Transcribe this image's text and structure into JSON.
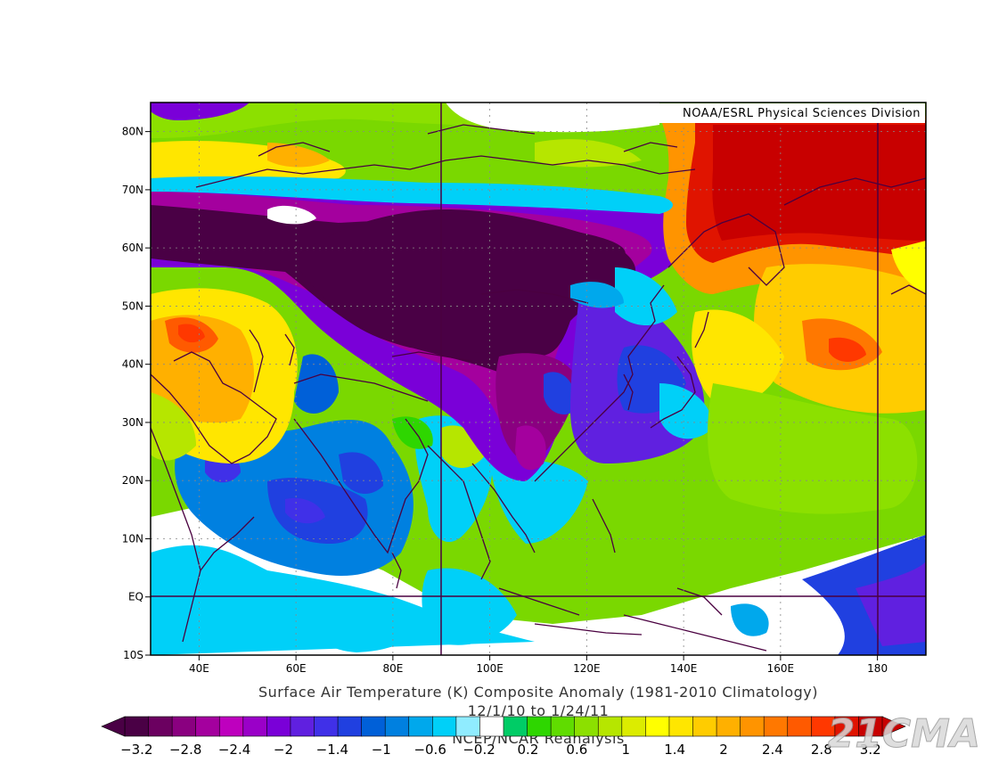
{
  "credit": "NOAA/ESRL Physical Sciences Division",
  "title": "Surface Air Temperature (K) Composite Anomaly (1981-2010 Climatology)",
  "date_range": "12/1/10  to 1/24/11",
  "source": "NCEP/NCAR Reanalysis",
  "watermark": "21CMA",
  "axes": {
    "lat_labels": [
      {
        "value": 80,
        "label": "80N"
      },
      {
        "value": 70,
        "label": "70N"
      },
      {
        "value": 60,
        "label": "60N"
      },
      {
        "value": 50,
        "label": "50N"
      },
      {
        "value": 40,
        "label": "40N"
      },
      {
        "value": 30,
        "label": "30N"
      },
      {
        "value": 20,
        "label": "20N"
      },
      {
        "value": 10,
        "label": "10N"
      },
      {
        "value": 0,
        "label": "EQ"
      },
      {
        "value": -10,
        "label": "10S"
      }
    ],
    "lon_labels": [
      {
        "value": 40,
        "label": "40E"
      },
      {
        "value": 60,
        "label": "60E"
      },
      {
        "value": 80,
        "label": "80E"
      },
      {
        "value": 100,
        "label": "100E"
      },
      {
        "value": 120,
        "label": "120E"
      },
      {
        "value": 140,
        "label": "140E"
      },
      {
        "value": 160,
        "label": "160E"
      },
      {
        "value": 180,
        "label": "180"
      }
    ],
    "lon_range": [
      30,
      190
    ],
    "lat_range": [
      -10,
      85
    ]
  },
  "colorbar": {
    "levels": [
      -3.2,
      -3.0,
      -2.8,
      -2.6,
      -2.4,
      -2.2,
      -2.0,
      -1.8,
      -1.6,
      -1.4,
      -1.2,
      -1.0,
      -0.8,
      -0.6,
      -0.4,
      -0.2,
      0.2,
      0.4,
      0.6,
      0.8,
      1.0,
      1.2,
      1.4,
      1.6,
      1.8,
      2.0,
      2.2,
      2.4,
      2.6,
      2.8,
      3.0,
      3.2
    ],
    "labels": [
      "−3.2",
      "−2.8",
      "−2.4",
      "−2",
      "−1.4",
      "−1",
      "−0.6",
      "−0.2",
      "0.2",
      "0.6",
      "1",
      "1.4",
      "2",
      "2.4",
      "2.8",
      "3.2"
    ],
    "colors": [
      "#4a0045",
      "#6b0060",
      "#8a0080",
      "#a4009e",
      "#be00be",
      "#9a00c8",
      "#7a00d8",
      "#6020e0",
      "#4030e8",
      "#2040e0",
      "#0060d8",
      "#0080e0",
      "#00a8ec",
      "#00d0f8",
      "#90ecff",
      "#ffffff",
      "#00cc66",
      "#2ed600",
      "#60dc00",
      "#8ce000",
      "#b6e600",
      "#dcec00",
      "#ffff00",
      "#ffe600",
      "#ffcc00",
      "#ffb000",
      "#ff9400",
      "#ff7800",
      "#ff5a00",
      "#ff3800",
      "#e01400",
      "#c80000"
    ]
  }
}
